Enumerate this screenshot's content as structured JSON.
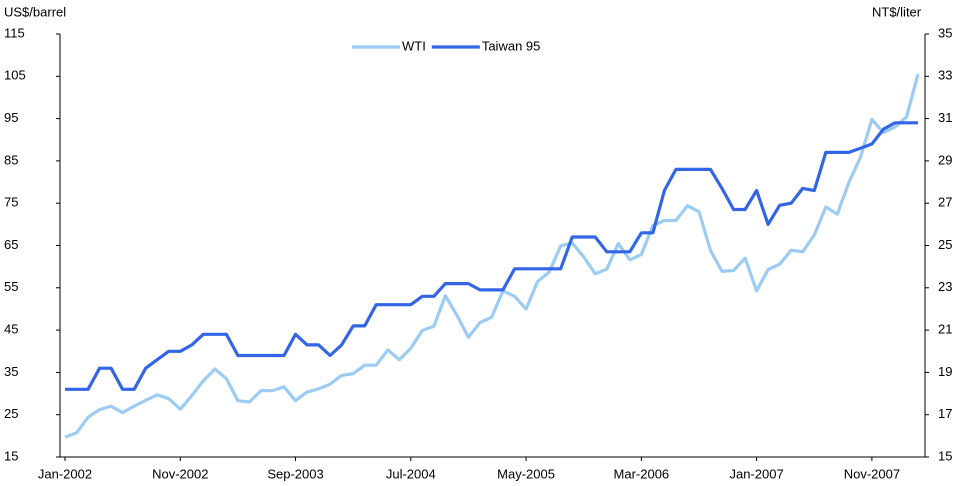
{
  "chart_data": {
    "type": "line",
    "y_label": "US$/barrel",
    "y2_label": "NT$/liter",
    "categories": [
      "Jan-2002",
      null,
      null,
      null,
      null,
      null,
      null,
      null,
      null,
      null,
      "Nov-2002",
      null,
      null,
      null,
      null,
      null,
      null,
      null,
      null,
      null,
      "Sep-2003",
      null,
      null,
      null,
      null,
      null,
      null,
      null,
      null,
      null,
      "Jul-2004",
      null,
      null,
      null,
      null,
      null,
      null,
      null,
      null,
      null,
      "May-2005",
      null,
      null,
      null,
      null,
      null,
      null,
      null,
      null,
      null,
      "Mar-2006",
      null,
      null,
      null,
      null,
      null,
      null,
      null,
      null,
      null,
      "Jan-2007",
      null,
      null,
      null,
      null,
      null,
      null,
      null,
      null,
      null,
      "Nov-2007",
      null,
      null,
      null,
      null
    ],
    "series": [
      {
        "name": "WTI",
        "color": "#9ccbf4",
        "axis": "y",
        "values": [
          19.7,
          20.7,
          24.4,
          26.2,
          27,
          25.5,
          27,
          28.4,
          29.7,
          28.8,
          26.3,
          29.5,
          33,
          35.8,
          33.5,
          28.3,
          28,
          30.7,
          30.7,
          31.6,
          28.3,
          30.4,
          31.1,
          32.2,
          34.3,
          34.7,
          36.7,
          36.7,
          40.3,
          38,
          40.7,
          44.9,
          45.9,
          53.1,
          48.5,
          43.3,
          46.8,
          48,
          54.3,
          53,
          50,
          56.5,
          58.7,
          64.9,
          65.6,
          62.3,
          58.3,
          59.4,
          65.5,
          61.6,
          62.9,
          69.7,
          70.9,
          70.9,
          74.4,
          73,
          63.8,
          58.9,
          59.1,
          62,
          54.3,
          59.3,
          60.6,
          63.9,
          63.5,
          67.5,
          74.1,
          72.4,
          79.9,
          85.8,
          94.8,
          91.7,
          93,
          95.4,
          105.5
        ]
      },
      {
        "name": "Taiwan 95",
        "color": "#3366e6",
        "axis": "y2",
        "values": [
          18.2,
          18.2,
          18.2,
          19.2,
          19.2,
          18.2,
          18.2,
          19.2,
          19.6,
          20,
          20,
          20.3,
          20.8,
          20.8,
          20.8,
          19.8,
          19.8,
          19.8,
          19.8,
          19.8,
          20.8,
          20.3,
          20.3,
          19.8,
          20.3,
          21.2,
          21.2,
          22.2,
          22.2,
          22.2,
          22.2,
          22.6,
          22.6,
          23.2,
          23.2,
          23.2,
          22.9,
          22.9,
          22.9,
          23.9,
          23.9,
          23.9,
          23.9,
          23.9,
          25.4,
          25.4,
          25.4,
          24.7,
          24.7,
          24.7,
          25.6,
          25.6,
          27.6,
          28.6,
          28.6,
          28.6,
          28.6,
          27.7,
          26.7,
          26.7,
          27.6,
          26,
          26.9,
          27,
          27.7,
          27.6,
          29.4,
          29.4,
          29.4,
          29.6,
          29.8,
          30.5,
          30.8,
          30.8,
          30.8
        ]
      }
    ],
    "ylim": [
      15,
      115
    ],
    "yticks": [
      15,
      25,
      35,
      45,
      55,
      65,
      75,
      85,
      95,
      105,
      115
    ],
    "y2lim": [
      15,
      35
    ],
    "y2ticks": [
      15,
      17,
      19,
      21,
      23,
      25,
      27,
      29,
      31,
      33,
      35
    ],
    "legend": "top"
  }
}
